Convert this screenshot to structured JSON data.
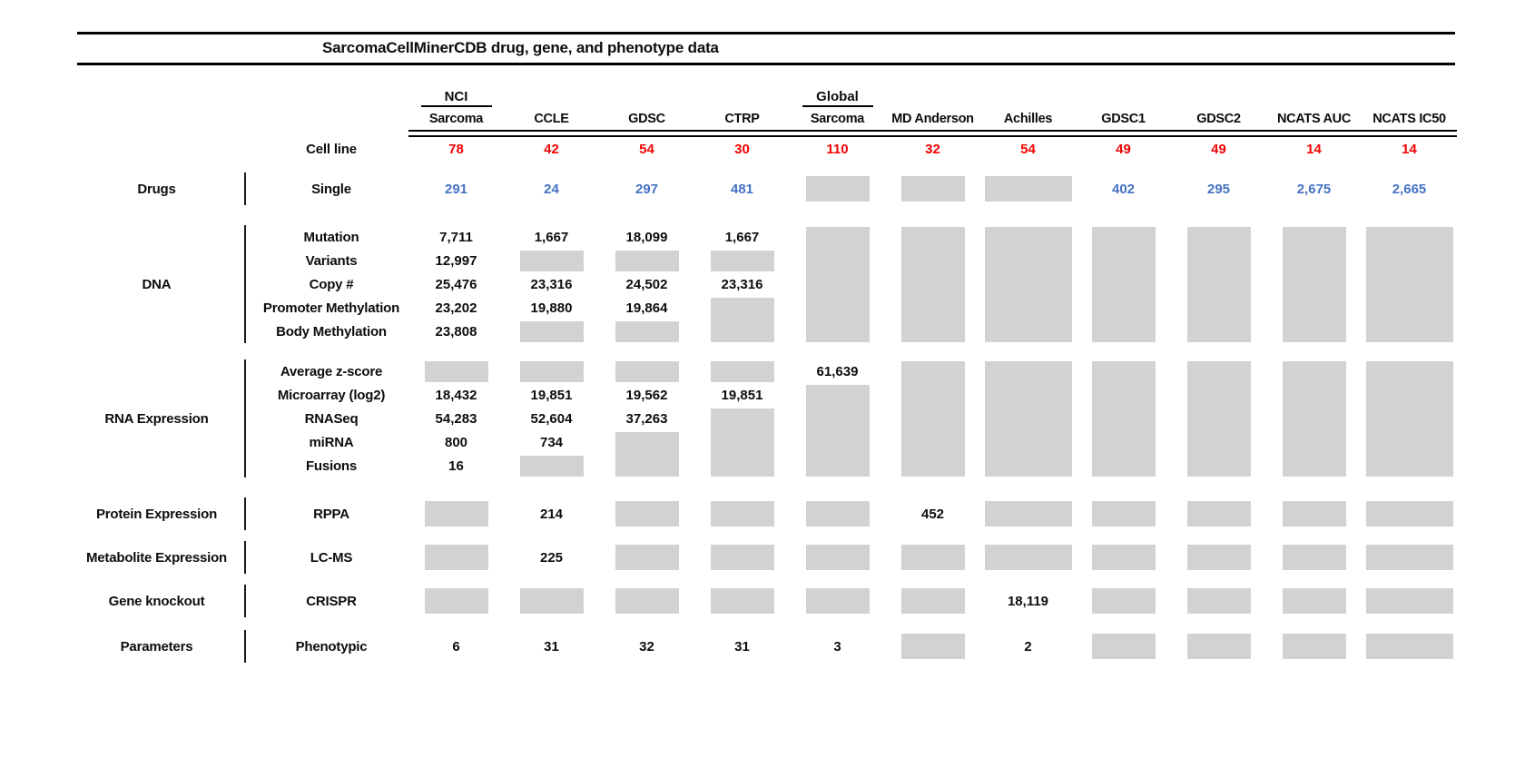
{
  "chart_data": {
    "type": "table",
    "title": "SarcomaCellMinerCDB drug, gene, and phenotype data",
    "colors": {
      "cell_line_count": "#f20202",
      "drug_values": "#4472c4",
      "missing_data": "#d2d2d2",
      "text": "#0d0d0d"
    },
    "cell_line_row_label": "Cell line",
    "columns": [
      {
        "top": "NCI",
        "name": "Sarcoma",
        "cell_lines": "78"
      },
      {
        "top": "",
        "name": "CCLE",
        "cell_lines": "42"
      },
      {
        "top": "",
        "name": "GDSC",
        "cell_lines": "54"
      },
      {
        "top": "",
        "name": "CTRP",
        "cell_lines": "30"
      },
      {
        "top": "Global",
        "name": "Sarcoma",
        "cell_lines": "110"
      },
      {
        "top": "",
        "name": "MD Anderson",
        "cell_lines": "32"
      },
      {
        "top": "",
        "name": "Achilles",
        "cell_lines": "54"
      },
      {
        "top": "",
        "name": "GDSC1",
        "cell_lines": "49"
      },
      {
        "top": "",
        "name": "GDSC2",
        "cell_lines": "49"
      },
      {
        "top": "",
        "name": "NCATS AUC",
        "cell_lines": "14"
      },
      {
        "top": "",
        "name": "NCATS IC50",
        "cell_lines": "14"
      }
    ],
    "row_groups": [
      {
        "category": "Drugs",
        "rows": [
          {
            "label": "Single",
            "color": "blue",
            "cells": [
              "291",
              "24",
              "297",
              "481",
              {
                "g": 1
              },
              {
                "g": 1
              },
              {
                "g": 1
              },
              "402",
              "295",
              "2,675",
              "2,665"
            ]
          }
        ]
      },
      {
        "category": "DNA",
        "rows": [
          {
            "label": "Mutation",
            "cells": [
              "7,711",
              "1,667",
              "18,099",
              "1,667",
              {
                "g": 5
              },
              {
                "g": 5
              },
              {
                "g": 5
              },
              {
                "g": 5
              },
              {
                "g": 5
              },
              {
                "g": 5
              },
              {
                "g": 5
              }
            ]
          },
          {
            "label": "Variants",
            "cells": [
              "12,997",
              {
                "g": 1
              },
              {
                "g": 1
              },
              {
                "g": 1
              },
              null,
              null,
              null,
              null,
              null,
              null,
              null
            ]
          },
          {
            "label": "Copy #",
            "cells": [
              "25,476",
              "23,316",
              "24,502",
              "23,316",
              null,
              null,
              null,
              null,
              null,
              null,
              null
            ]
          },
          {
            "label": "Promoter Methylation",
            "cells": [
              "23,202",
              "19,880",
              "19,864",
              {
                "g": 2
              },
              null,
              null,
              null,
              null,
              null,
              null,
              null
            ]
          },
          {
            "label": "Body Methylation",
            "cells": [
              "23,808",
              {
                "g": 1
              },
              {
                "g": 1
              },
              null,
              null,
              null,
              null,
              null,
              null,
              null,
              null
            ]
          }
        ]
      },
      {
        "category": "RNA Expression",
        "rows": [
          {
            "label": "Average z-score",
            "cells": [
              {
                "g": 1
              },
              {
                "g": 1
              },
              {
                "g": 1
              },
              {
                "g": 1
              },
              "61,639",
              {
                "g": 5
              },
              {
                "g": 5
              },
              {
                "g": 5
              },
              {
                "g": 5
              },
              {
                "g": 5
              },
              {
                "g": 5
              }
            ]
          },
          {
            "label": "Microarray (log2)",
            "cells": [
              "18,432",
              "19,851",
              "19,562",
              "19,851",
              {
                "g": 4
              },
              null,
              null,
              null,
              null,
              null,
              null
            ]
          },
          {
            "label": "RNASeq",
            "cells": [
              "54,283",
              "52,604",
              "37,263",
              {
                "g": 3
              },
              null,
              null,
              null,
              null,
              null,
              null,
              null
            ]
          },
          {
            "label": "miRNA",
            "cells": [
              "800",
              "734",
              {
                "g": 2
              },
              null,
              null,
              null,
              null,
              null,
              null,
              null,
              null
            ]
          },
          {
            "label": "Fusions",
            "cells": [
              "16",
              {
                "g": 1
              },
              null,
              null,
              null,
              null,
              null,
              null,
              null,
              null,
              null
            ]
          }
        ]
      },
      {
        "category": "Protein Expression",
        "rows": [
          {
            "label": "RPPA",
            "cells": [
              {
                "g": 1
              },
              "214",
              {
                "g": 1
              },
              {
                "g": 1
              },
              {
                "g": 1
              },
              "452",
              {
                "g": 1
              },
              {
                "g": 1
              },
              {
                "g": 1
              },
              {
                "g": 1
              },
              {
                "g": 1
              }
            ]
          }
        ]
      },
      {
        "category": "Metabolite Expression",
        "rows": [
          {
            "label": "LC-MS",
            "cells": [
              {
                "g": 1
              },
              "225",
              {
                "g": 1
              },
              {
                "g": 1
              },
              {
                "g": 1
              },
              {
                "g": 1
              },
              {
                "g": 1
              },
              {
                "g": 1
              },
              {
                "g": 1
              },
              {
                "g": 1
              },
              {
                "g": 1
              }
            ]
          }
        ]
      },
      {
        "category": "Gene knockout",
        "rows": [
          {
            "label": "CRISPR",
            "cells": [
              {
                "g": 1
              },
              {
                "g": 1
              },
              {
                "g": 1
              },
              {
                "g": 1
              },
              {
                "g": 1
              },
              {
                "g": 1
              },
              "18,119",
              {
                "g": 1
              },
              {
                "g": 1
              },
              {
                "g": 1
              },
              {
                "g": 1
              }
            ]
          }
        ]
      },
      {
        "category": "Parameters",
        "rows": [
          {
            "label": "Phenotypic",
            "cells": [
              "6",
              "31",
              "32",
              "31",
              "3",
              {
                "g": 1
              },
              "2",
              {
                "g": 1
              },
              {
                "g": 1
              },
              {
                "g": 1
              },
              {
                "g": 1
              }
            ]
          }
        ]
      }
    ]
  }
}
